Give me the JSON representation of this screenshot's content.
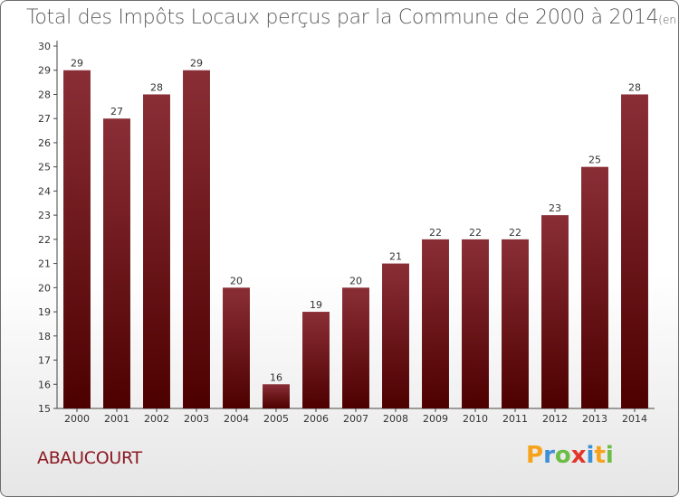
{
  "title": "Total des Impôts Locaux perçus par la Commune de 2000 à 2014",
  "unit": "(en milliers d'€)",
  "commune": "ABAUCOURT",
  "logo": {
    "text": "Proxiti",
    "letters": [
      "P",
      "r",
      "o",
      "x",
      "i",
      "t",
      "i"
    ],
    "colors": [
      "#f7a21b",
      "#3d8fd6",
      "#6cbd45",
      "#e2362b",
      "#3d8fd6",
      "#f7a21b",
      "#6cbd45"
    ]
  },
  "colors": {
    "bar_top": "#8a2e36",
    "bar_bottom": "#4d0000",
    "title": "#5a5a5a",
    "commune": "#8b1a22"
  },
  "chart_data": {
    "type": "bar",
    "title": "Total des Impôts Locaux perçus par la Commune de 2000 à 2014",
    "ylabel": "(en milliers d'€)",
    "xlabel": "",
    "categories": [
      "2000",
      "2001",
      "2002",
      "2003",
      "2004",
      "2005",
      "2006",
      "2007",
      "2008",
      "2009",
      "2010",
      "2011",
      "2012",
      "2013",
      "2014"
    ],
    "values": [
      29,
      27,
      28,
      29,
      20,
      16,
      19,
      20,
      21,
      22,
      22,
      22,
      23,
      25,
      28
    ],
    "value_labels": [
      "29",
      "27",
      "28",
      "29",
      "20",
      "16",
      "19",
      "20",
      "21",
      "22",
      "22",
      "22",
      "23",
      "25",
      "28"
    ],
    "ylim": [
      15,
      30
    ],
    "yticks": [
      "15",
      "16",
      "17",
      "18",
      "19",
      "20",
      "21",
      "22",
      "23",
      "24",
      "25",
      "26",
      "27",
      "28",
      "29",
      "30"
    ],
    "grid": false,
    "legend": "none"
  }
}
